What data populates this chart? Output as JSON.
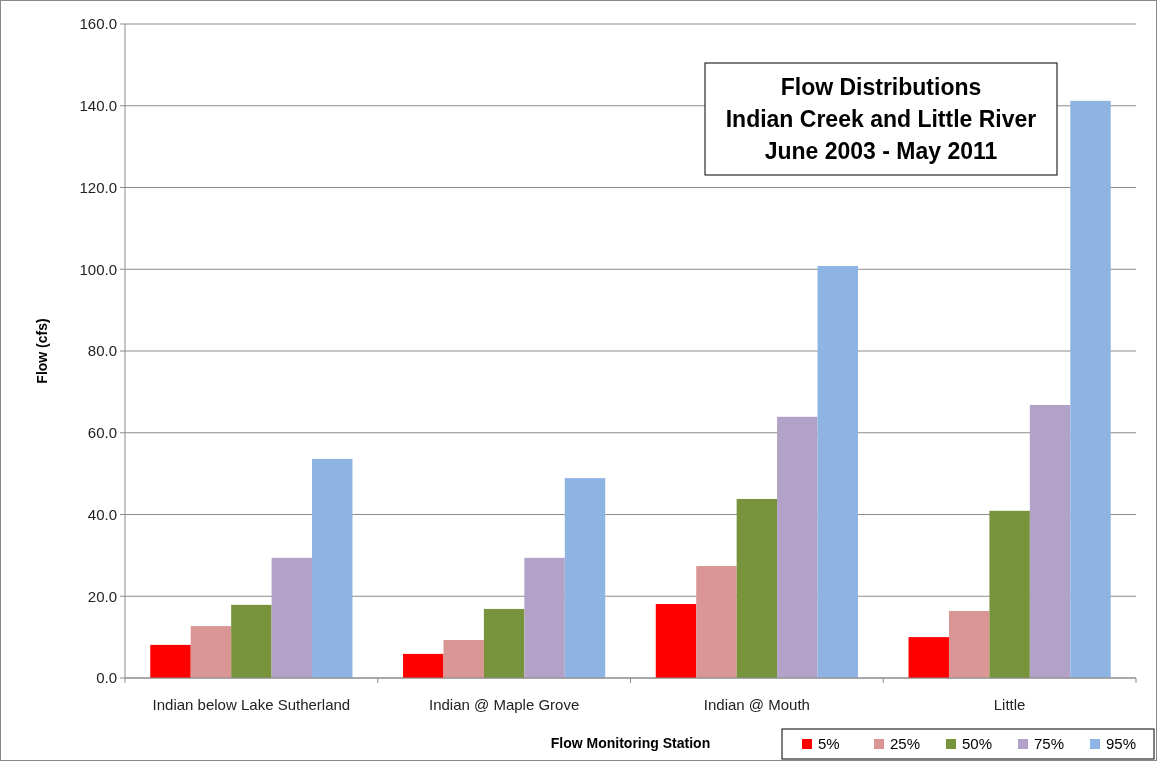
{
  "chart_data": {
    "type": "bar",
    "title": "Flow Distributions\nIndian Creek and Little River\nJune 2003 - May 2011",
    "xlabel": "Flow Monitoring Station",
    "ylabel": "Flow (cfs)",
    "categories": [
      "Indian below Lake Sutherland",
      "Indian @ Maple Grove",
      "Indian @ Mouth",
      "Little"
    ],
    "series": [
      {
        "name": "5%",
        "color": "#ff0000",
        "values": [
          8.1,
          5.9,
          18.1,
          10.0
        ]
      },
      {
        "name": "25%",
        "color": "#d99694",
        "values": [
          12.7,
          9.3,
          27.4,
          16.4
        ]
      },
      {
        "name": "50%",
        "color": "#77933c",
        "values": [
          17.9,
          16.9,
          43.8,
          40.9
        ]
      },
      {
        "name": "75%",
        "color": "#b3a2c7",
        "values": [
          29.4,
          29.4,
          63.9,
          66.8
        ]
      },
      {
        "name": "95%",
        "color": "#8eb4e3",
        "values": [
          53.6,
          48.9,
          100.8,
          141.2
        ]
      }
    ],
    "ylim": [
      0,
      160
    ],
    "yticks": [
      {
        "value": 0,
        "label": "0.0"
      },
      {
        "value": 20,
        "label": "20.0"
      },
      {
        "value": 40,
        "label": "40.0"
      },
      {
        "value": 60,
        "label": "60.0"
      },
      {
        "value": 80,
        "label": "80.0"
      },
      {
        "value": 100,
        "label": "100.0"
      },
      {
        "value": 120,
        "label": "120.0"
      },
      {
        "value": 140,
        "label": "140.0"
      },
      {
        "value": 160,
        "label": "160.0"
      }
    ],
    "grid": "y",
    "legend": "bottom right"
  }
}
